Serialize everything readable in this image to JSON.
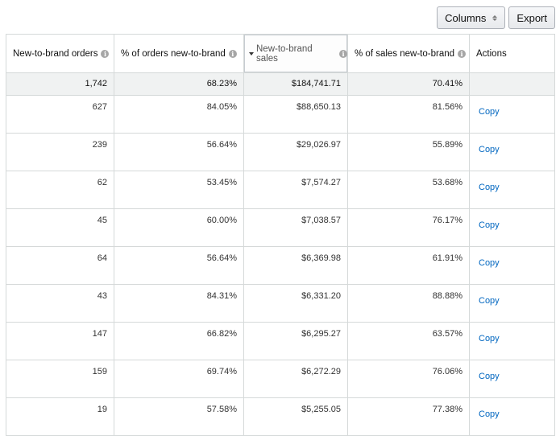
{
  "toolbar": {
    "columns_label": "Columns",
    "export_label": "Export"
  },
  "table": {
    "headers": [
      "New-to-brand orders",
      "% of orders new-to-brand",
      "New-to-brand sales",
      "% of sales new-to-brand",
      "Actions"
    ],
    "sorted_column": "New-to-brand sales",
    "sort_direction": "descending",
    "totals": [
      "1,742",
      "68.23%",
      "$184,741.71",
      "70.41%",
      ""
    ],
    "rows": [
      [
        "627",
        "84.05%",
        "$88,650.13",
        "81.56%",
        "Copy"
      ],
      [
        "239",
        "56.64%",
        "$29,026.97",
        "55.89%",
        "Copy"
      ],
      [
        "62",
        "53.45%",
        "$7,574.27",
        "53.68%",
        "Copy"
      ],
      [
        "45",
        "60.00%",
        "$7,038.57",
        "76.17%",
        "Copy"
      ],
      [
        "64",
        "56.64%",
        "$6,369.98",
        "61.91%",
        "Copy"
      ],
      [
        "43",
        "84.31%",
        "$6,331.20",
        "88.88%",
        "Copy"
      ],
      [
        "147",
        "66.82%",
        "$6,295.27",
        "63.57%",
        "Copy"
      ],
      [
        "159",
        "69.74%",
        "$6,272.29",
        "76.06%",
        "Copy"
      ],
      [
        "19",
        "57.58%",
        "$5,255.05",
        "77.38%",
        "Copy"
      ]
    ]
  },
  "icons": {
    "info": "info-icon",
    "sort_desc": "caret-down-icon",
    "columns_sort": "sort-icon"
  },
  "colors": {
    "link": "#0066c0",
    "border": "#d5d9d9",
    "totals_bg": "#f0f2f2"
  }
}
